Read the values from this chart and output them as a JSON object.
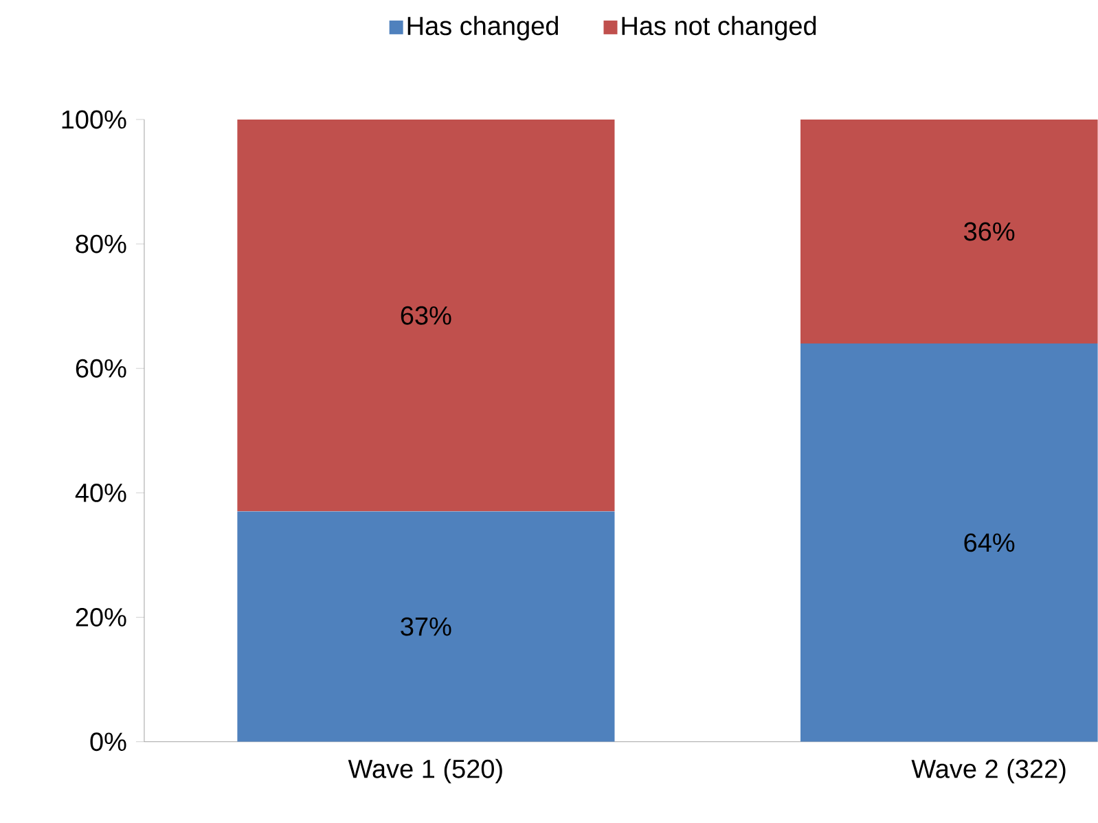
{
  "chart_data": {
    "type": "bar",
    "stacked": true,
    "categories": [
      "Wave 1 (520)",
      "Wave 2 (322)"
    ],
    "series": [
      {
        "name": "Has changed",
        "color": "#4f81bd",
        "values": [
          37,
          64
        ],
        "value_labels": [
          "37%",
          "64%"
        ]
      },
      {
        "name": "Has not changed",
        "color": "#c0504d",
        "values": [
          63,
          36
        ],
        "value_labels": [
          "63%",
          "36%"
        ]
      }
    ],
    "ylim": [
      0,
      100
    ],
    "yticks": [
      {
        "value": 0,
        "label": "0%"
      },
      {
        "value": 20,
        "label": "20%"
      },
      {
        "value": 40,
        "label": "40%"
      },
      {
        "value": 60,
        "label": "60%"
      },
      {
        "value": 80,
        "label": "80%"
      },
      {
        "value": 100,
        "label": "100%"
      }
    ],
    "grid": false,
    "legend": "top"
  }
}
